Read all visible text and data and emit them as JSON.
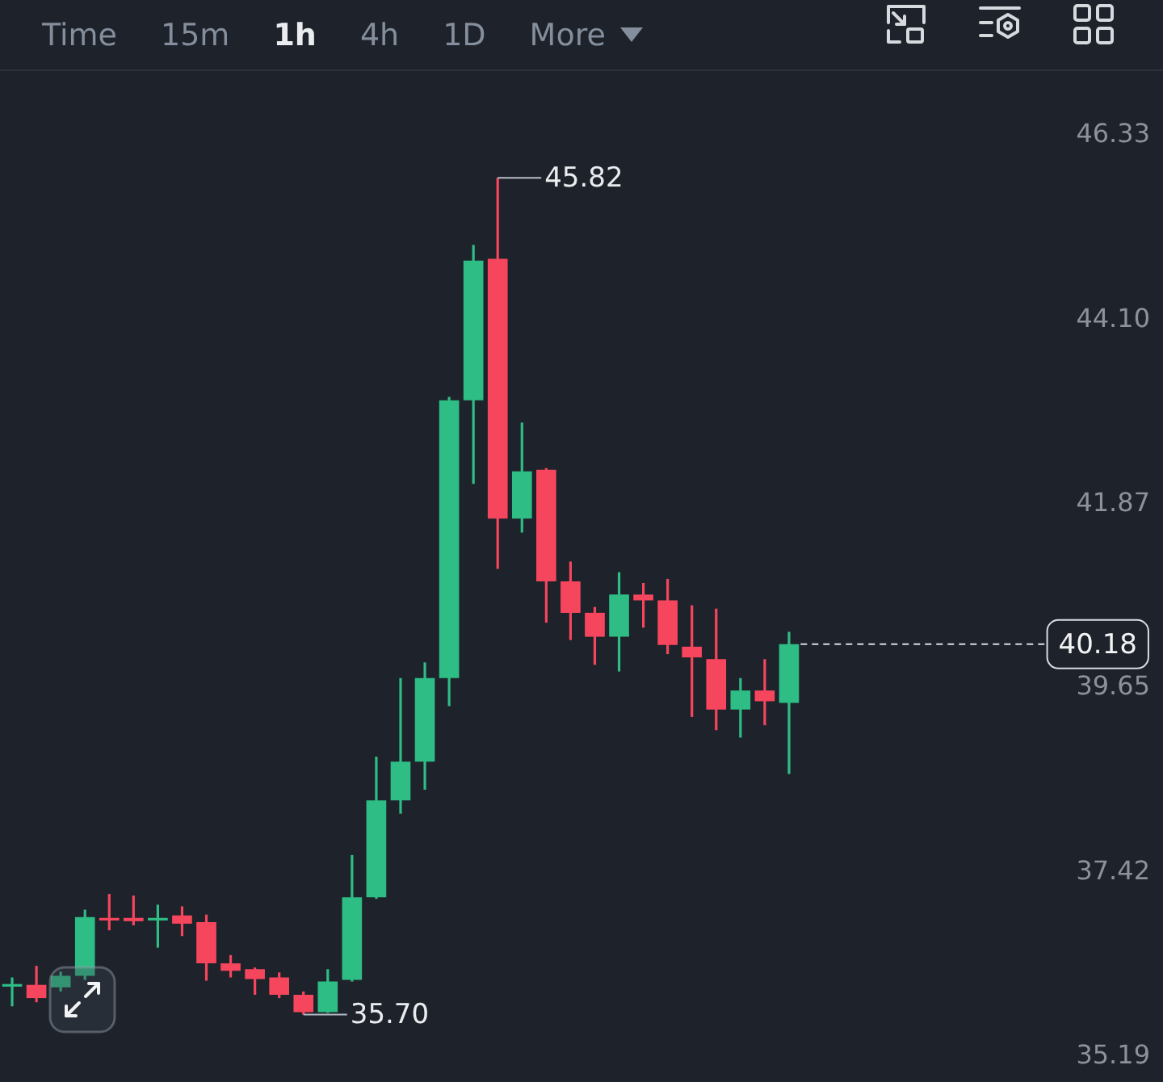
{
  "chart_data": {
    "type": "candlestick",
    "categories": [
      null,
      null,
      null,
      null,
      null,
      null,
      null,
      null,
      null,
      null,
      null,
      null,
      null,
      null,
      null,
      null,
      null,
      null,
      null,
      null,
      null,
      null,
      null,
      null,
      null,
      null,
      null,
      null,
      null,
      null,
      null,
      null,
      null,
      null,
      null,
      null,
      null,
      null,
      null,
      null,
      null,
      null,
      null
    ],
    "ohlc": [
      [
        36.05,
        36.15,
        35.8,
        36.07
      ],
      [
        36.06,
        36.29,
        35.85,
        35.9
      ],
      [
        36.03,
        36.22,
        35.98,
        36.17
      ],
      [
        36.17,
        36.97,
        36.12,
        36.88
      ],
      [
        36.87,
        37.16,
        36.72,
        36.84
      ],
      [
        36.87,
        37.14,
        36.78,
        36.83
      ],
      [
        36.84,
        37.03,
        36.51,
        36.87
      ],
      [
        36.9,
        37.01,
        36.65,
        36.8
      ],
      [
        36.82,
        36.91,
        36.11,
        36.32
      ],
      [
        36.32,
        36.42,
        36.15,
        36.23
      ],
      [
        36.25,
        36.27,
        35.94,
        36.13
      ],
      [
        36.15,
        36.21,
        35.9,
        35.94
      ],
      [
        35.94,
        35.98,
        35.7,
        35.73
      ],
      [
        35.73,
        36.25,
        35.72,
        36.1
      ],
      [
        36.12,
        37.63,
        36.1,
        37.12
      ],
      [
        37.12,
        38.82,
        37.1,
        38.29
      ],
      [
        38.29,
        39.77,
        38.13,
        38.76
      ],
      [
        38.76,
        39.96,
        38.42,
        39.77
      ],
      [
        39.77,
        43.17,
        39.43,
        43.13
      ],
      [
        43.13,
        45.01,
        42.12,
        44.82
      ],
      [
        44.84,
        45.82,
        41.09,
        41.7
      ],
      [
        41.7,
        42.86,
        41.53,
        42.27
      ],
      [
        42.29,
        42.31,
        40.44,
        40.94
      ],
      [
        40.94,
        41.18,
        40.23,
        40.56
      ],
      [
        40.56,
        40.63,
        39.93,
        40.27
      ],
      [
        40.27,
        41.05,
        39.85,
        40.78
      ],
      [
        40.78,
        40.92,
        40.38,
        40.71
      ],
      [
        40.71,
        40.97,
        40.06,
        40.17
      ],
      [
        40.15,
        40.65,
        39.3,
        40.02
      ],
      [
        40.0,
        40.61,
        39.14,
        39.39
      ],
      [
        39.39,
        39.77,
        39.05,
        39.62
      ],
      [
        39.62,
        40.0,
        39.2,
        39.49
      ],
      [
        39.47,
        40.33,
        38.61,
        40.18
      ],
      null,
      null,
      null,
      null,
      null,
      null,
      null,
      null,
      null,
      null
    ],
    "colors": [
      "#2ebd85",
      "#f6465d",
      "#2ebd85",
      "#2ebd85",
      "#f6465d",
      "#f6465d",
      "#2ebd85",
      "#f6465d",
      "#f6465d",
      "#f6465d",
      "#f6465d",
      "#f6465d",
      "#f6465d",
      "#2ebd85",
      "#2ebd85",
      "#2ebd85",
      "#2ebd85",
      "#2ebd85",
      "#2ebd85",
      "#2ebd85",
      "#f6465d",
      "#2ebd85",
      "#f6465d",
      "#f6465d",
      "#f6465d",
      "#2ebd85",
      "#f6465d",
      "#f6465d",
      "#f6465d",
      "#f6465d",
      "#2ebd85",
      "#f6465d",
      "#2ebd85",
      null,
      null,
      null,
      null,
      null,
      null,
      null,
      null,
      null,
      null
    ],
    "ylim": [
      35.19,
      46.33
    ],
    "yticks": [
      46.33,
      {
        "value": 44.1,
        "label": "44.10"
      },
      41.87,
      39.65,
      37.42,
      35.19
    ],
    "tick_labels": "y",
    "grid": false,
    "legend": false,
    "ref_lines": [
      {
        "axis": "y",
        "value": 40.18,
        "label": "40.18",
        "color": "#d9dce1",
        "line_style": "dashed"
      }
    ],
    "annotations": [
      "Time",
      "15m",
      "1h",
      "4h",
      "1D",
      "More",
      "45.82",
      "35.70"
    ]
  }
}
